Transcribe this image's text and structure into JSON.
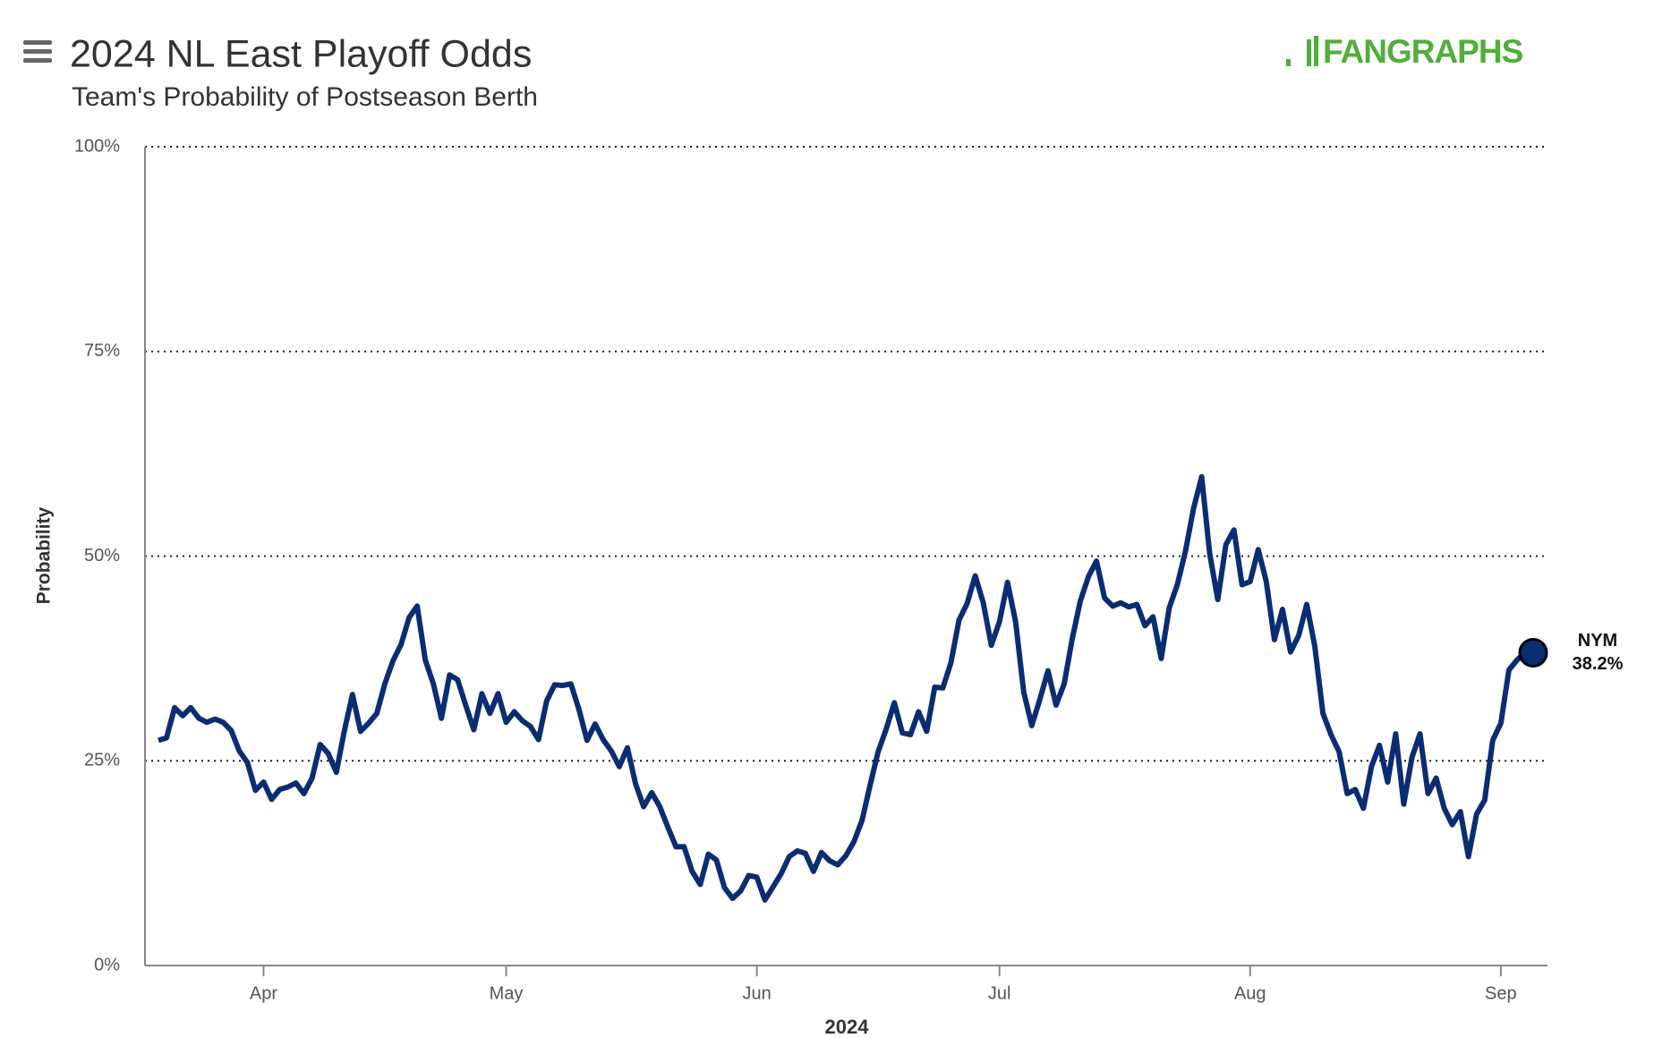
{
  "chart_data": {
    "type": "line",
    "title": "2024 NL East Playoff Odds",
    "subtitle": "Team's Probability of Postseason Berth",
    "logo": "FANGRAPHS",
    "y_label": "Probability",
    "x_label": "2024",
    "categories": [
      null,
      null,
      null,
      null,
      null,
      null,
      null,
      null,
      null,
      null,
      null,
      null,
      null,
      "Apr",
      null,
      null,
      null,
      null,
      null,
      null,
      null,
      null,
      null,
      null,
      null,
      null,
      null,
      null,
      null,
      null,
      null,
      null,
      null,
      null,
      null,
      null,
      null,
      null,
      null,
      null,
      null,
      null,
      null,
      "May",
      null,
      null,
      null,
      null,
      null,
      null,
      null,
      null,
      null,
      null,
      null,
      null,
      null,
      null,
      null,
      null,
      null,
      null,
      null,
      null,
      null,
      null,
      null,
      null,
      null,
      null,
      null,
      null,
      null,
      null,
      "Jun",
      null,
      null,
      null,
      null,
      null,
      null,
      null,
      null,
      null,
      null,
      null,
      null,
      null,
      null,
      null,
      null,
      null,
      null,
      null,
      null,
      null,
      null,
      null,
      null,
      null,
      null,
      null,
      null,
      null,
      "Jul",
      null,
      null,
      null,
      null,
      null,
      null,
      null,
      null,
      null,
      null,
      null,
      null,
      null,
      null,
      null,
      null,
      null,
      null,
      null,
      null,
      null,
      null,
      null,
      null,
      null,
      null,
      null,
      null,
      null,
      null,
      "Aug",
      null,
      null,
      null,
      null,
      null,
      null,
      null,
      null,
      null,
      null,
      null,
      null,
      null,
      null,
      null,
      null,
      null,
      null,
      null,
      null,
      null,
      null,
      null,
      null,
      null,
      null,
      null,
      null,
      null,
      null,
      "Sep",
      null,
      null,
      null,
      null
    ],
    "series": [
      {
        "name": "NYM",
        "color": "#0a2d72",
        "values": [
          27.5,
          27.8,
          31.5,
          30.5,
          31.5,
          30.2,
          29.7,
          30.1,
          29.7,
          28.7,
          26.2,
          24.8,
          21.4,
          22.4,
          20.3,
          21.5,
          21.8,
          22.3,
          21.0,
          22.9,
          27.0,
          25.9,
          23.6,
          28.7,
          33.1,
          28.6,
          29.6,
          30.8,
          34.4,
          37.2,
          39.2,
          42.5,
          43.9,
          37.3,
          34.4,
          30.2,
          35.5,
          34.9,
          31.8,
          28.8,
          33.2,
          30.8,
          33.2,
          29.7,
          31.0,
          29.9,
          29.2,
          27.6,
          32.3,
          34.3,
          34.2,
          34.4,
          31.3,
          27.5,
          29.5,
          27.6,
          26.2,
          24.3,
          26.6,
          22.2,
          19.4,
          21.1,
          19.4,
          16.9,
          14.5,
          14.5,
          11.5,
          9.9,
          13.6,
          12.9,
          9.5,
          8.2,
          9.1,
          11.0,
          10.8,
          8.0,
          9.6,
          11.2,
          13.3,
          14.0,
          13.7,
          11.5,
          13.8,
          12.8,
          12.3,
          13.4,
          15.1,
          17.7,
          22.0,
          26.1,
          28.9,
          32.1,
          28.4,
          28.2,
          31.0,
          28.6,
          34.0,
          33.9,
          37.0,
          42.2,
          44.2,
          47.6,
          44.3,
          39.1,
          42.0,
          46.8,
          42.0,
          33.4,
          29.3,
          32.5,
          36.0,
          31.8,
          34.4,
          39.9,
          44.5,
          47.5,
          49.4,
          44.9,
          43.9,
          44.3,
          43.8,
          44.1,
          41.5,
          42.6,
          37.5,
          43.7,
          46.5,
          50.6,
          55.8,
          59.7,
          50.3,
          44.7,
          51.4,
          53.2,
          46.5,
          46.9,
          50.8,
          46.9,
          39.8,
          43.5,
          38.3,
          40.3,
          44.1,
          39.0,
          30.8,
          28.2,
          26.1,
          21.0,
          21.5,
          19.2,
          24.3,
          26.9,
          22.4,
          28.3,
          19.7,
          25.4,
          28.3,
          21.0,
          22.9,
          19.2,
          17.2,
          18.8,
          13.3,
          18.5,
          20.2,
          27.5,
          29.6,
          36.1,
          37.3,
          38.3,
          38.2
        ]
      }
    ],
    "last_value_label": "38.2%",
    "ylim": [
      0,
      100
    ],
    "yticks": [
      {
        "value": 0,
        "label": "0%"
      },
      {
        "value": 25,
        "label": "25%"
      },
      {
        "value": 50,
        "label": "50%"
      },
      {
        "value": 75,
        "label": "75%"
      },
      {
        "value": 100,
        "label": "100%"
      }
    ],
    "grid": true
  }
}
